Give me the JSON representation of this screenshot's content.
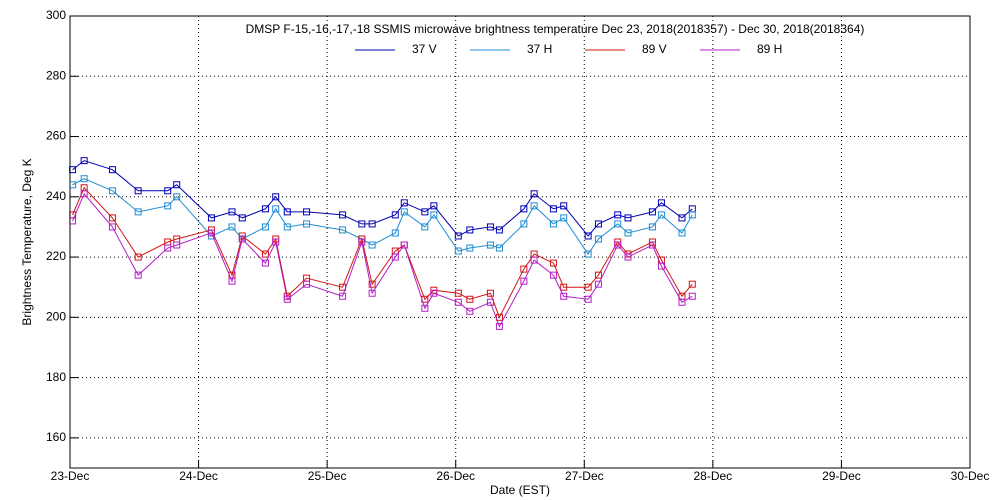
{
  "chart_data": {
    "type": "line",
    "title": "DMSP F-15,-16,-17,-18 SSMIS microwave brightness temperature Dec 23, 2018(2018357) - Dec 30, 2018(2018364)",
    "xlabel": "Date (EST)",
    "ylabel": "Brightness Temperature, Deg K",
    "x": [
      0.02,
      0.11,
      0.33,
      0.53,
      0.76,
      0.83,
      1.1,
      1.26,
      1.34,
      1.52,
      1.6,
      1.69,
      1.84,
      2.12,
      2.27,
      2.35,
      2.53,
      2.6,
      2.76,
      2.83,
      3.02,
      3.11,
      3.27,
      3.34,
      3.53,
      3.61,
      3.76,
      3.84,
      4.03,
      4.11,
      4.26,
      4.34,
      4.53,
      4.6,
      4.76,
      4.84
    ],
    "series": [
      {
        "name": "37 V",
        "color": "#0000b4",
        "values": [
          249,
          252,
          249,
          242,
          242,
          244,
          233,
          235,
          233,
          236,
          240,
          235,
          235,
          234,
          231,
          231,
          234,
          238,
          235,
          237,
          227,
          229,
          230,
          229,
          236,
          241,
          236,
          237,
          227,
          231,
          234,
          233,
          235,
          238,
          233,
          236
        ]
      },
      {
        "name": "37 H",
        "color": "#1e8cd2",
        "values": [
          244,
          246,
          242,
          235,
          237,
          240,
          227,
          230,
          226,
          230,
          236,
          230,
          231,
          229,
          226,
          224,
          228,
          235,
          230,
          234,
          222,
          223,
          224,
          223,
          231,
          237,
          231,
          233,
          221,
          226,
          231,
          228,
          230,
          234,
          228,
          234
        ]
      },
      {
        "name": "89 V",
        "color": "#d21414",
        "values": [
          234,
          243,
          233,
          220,
          225,
          226,
          229,
          214,
          227,
          221,
          226,
          207,
          213,
          210,
          226,
          211,
          222,
          224,
          206,
          209,
          208,
          206,
          208,
          200,
          216,
          221,
          218,
          210,
          210,
          214,
          225,
          221,
          225,
          219,
          207,
          211
        ]
      },
      {
        "name": "89 H",
        "color": "#b41ec8",
        "values": [
          232,
          241,
          230,
          214,
          223,
          224,
          228,
          212,
          226,
          218,
          225,
          206,
          211,
          207,
          225,
          208,
          220,
          224,
          203,
          208,
          205,
          202,
          205,
          197,
          212,
          219,
          214,
          207,
          206,
          211,
          224,
          220,
          224,
          217,
          205,
          207
        ]
      }
    ],
    "xlim": [
      0,
      7
    ],
    "xticks": [
      {
        "value": 0,
        "label": "23-Dec"
      },
      {
        "value": 1,
        "label": "24-Dec"
      },
      {
        "value": 2,
        "label": "25-Dec"
      },
      {
        "value": 3,
        "label": "26-Dec"
      },
      {
        "value": 4,
        "label": "27-Dec"
      },
      {
        "value": 5,
        "label": "28-Dec"
      },
      {
        "value": 6,
        "label": "29-Dec"
      },
      {
        "value": 7,
        "label": "30-Dec"
      }
    ],
    "ylim": [
      150,
      300
    ],
    "yticks": [
      160,
      180,
      200,
      220,
      240,
      260,
      280,
      300
    ],
    "grid": true
  }
}
